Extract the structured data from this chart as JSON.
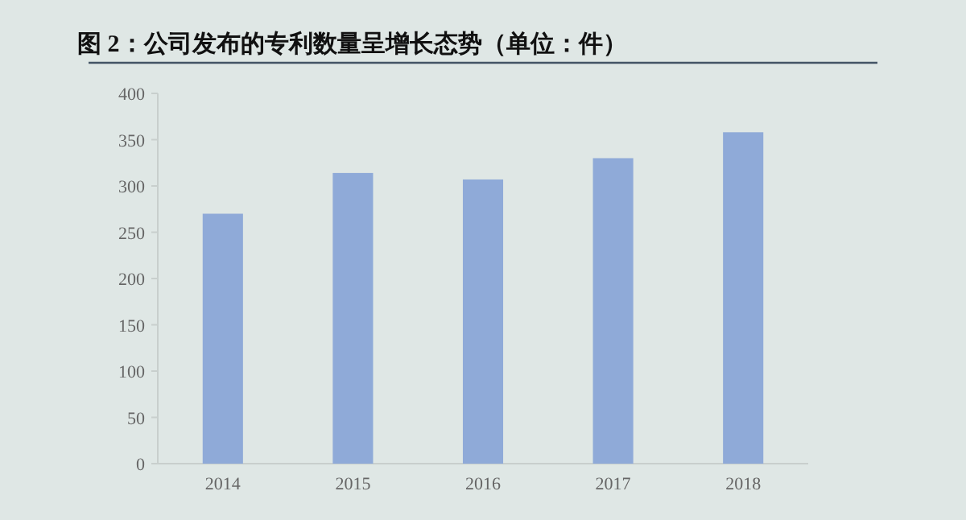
{
  "chart_data": {
    "type": "bar",
    "title": "图 2：公司发布的专利数量呈增长态势（单位：件）",
    "categories": [
      "2014",
      "2015",
      "2016",
      "2017",
      "2018"
    ],
    "values": [
      270,
      314,
      307,
      330,
      358
    ],
    "color": "#8faad8",
    "ylim": [
      0,
      400
    ],
    "yticks": [
      0,
      50,
      100,
      150,
      200,
      250,
      300,
      350,
      400
    ]
  }
}
